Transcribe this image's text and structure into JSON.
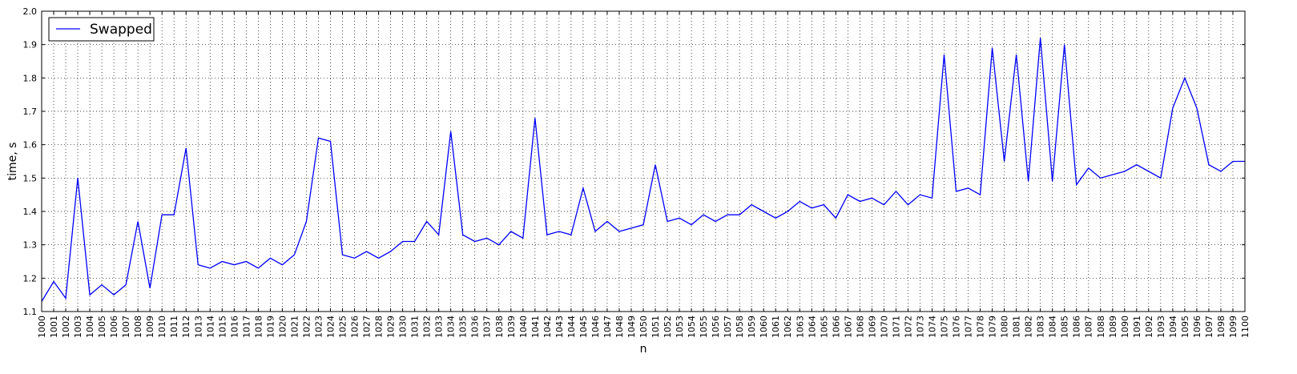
{
  "chart_data": {
    "type": "line",
    "xlabel": "n",
    "ylabel": "time, s",
    "xlim": [
      1000,
      1100
    ],
    "ylim": [
      1.1,
      2.0
    ],
    "x_ticks_step": 1,
    "y_ticks": [
      "1.1",
      "1.2",
      "1.3",
      "1.4",
      "1.5",
      "1.6",
      "1.7",
      "1.8",
      "1.9",
      "2.0"
    ],
    "grid": true,
    "grid_style": "dotted",
    "legend_position": "top-left",
    "colors": {
      "series": "#0000ff",
      "axes": "#000000",
      "grid": "#000000"
    },
    "series": [
      {
        "name": "Swapped",
        "x_start": 1000,
        "x_step": 1,
        "values": [
          1.13,
          1.19,
          1.14,
          1.5,
          1.15,
          1.18,
          1.15,
          1.18,
          1.37,
          1.17,
          1.39,
          1.39,
          1.59,
          1.24,
          1.23,
          1.25,
          1.24,
          1.25,
          1.23,
          1.26,
          1.24,
          1.27,
          1.37,
          1.62,
          1.61,
          1.27,
          1.26,
          1.28,
          1.26,
          1.28,
          1.31,
          1.31,
          1.37,
          1.33,
          1.64,
          1.33,
          1.31,
          1.32,
          1.3,
          1.34,
          1.32,
          1.68,
          1.33,
          1.34,
          1.33,
          1.47,
          1.34,
          1.37,
          1.34,
          1.35,
          1.36,
          1.54,
          1.37,
          1.38,
          1.36,
          1.39,
          1.37,
          1.39,
          1.39,
          1.42,
          1.4,
          1.38,
          1.4,
          1.43,
          1.41,
          1.42,
          1.38,
          1.45,
          1.43,
          1.44,
          1.42,
          1.46,
          1.42,
          1.45,
          1.44,
          1.87,
          1.46,
          1.47,
          1.45,
          1.89,
          1.55,
          1.87,
          1.49,
          1.92,
          1.49,
          1.9,
          1.48,
          1.53,
          1.5,
          1.51,
          1.52,
          1.54,
          1.52,
          1.5,
          1.71,
          1.8,
          1.71,
          1.54,
          1.52,
          1.55,
          1.55
        ]
      }
    ]
  }
}
